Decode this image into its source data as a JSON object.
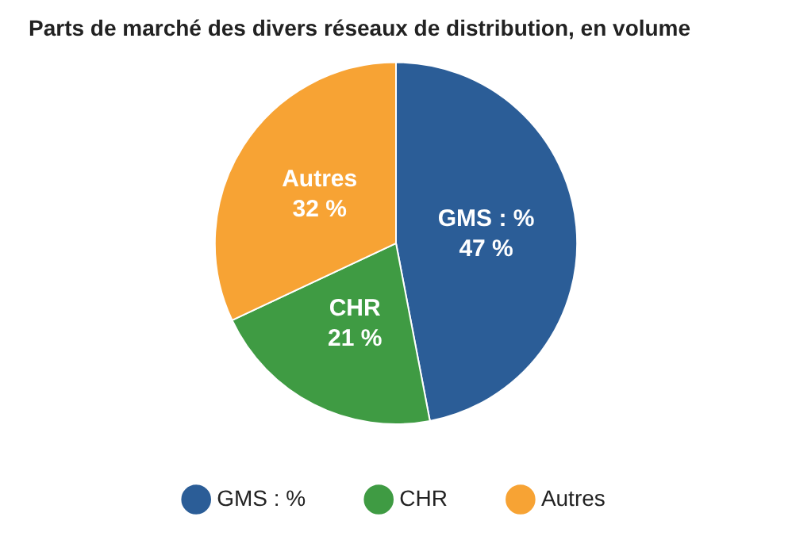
{
  "chart_data": {
    "type": "pie",
    "title": "Parts de marché des divers réseaux de distribution, en volume",
    "categories": [
      "GMS : %",
      "CHR",
      "Autres"
    ],
    "values": [
      47,
      21,
      32
    ],
    "value_labels": [
      "47 %",
      "21 %",
      "32 %"
    ],
    "colors": [
      "#2b5d97",
      "#3f9b43",
      "#f7a334"
    ],
    "legend": "bottom"
  }
}
